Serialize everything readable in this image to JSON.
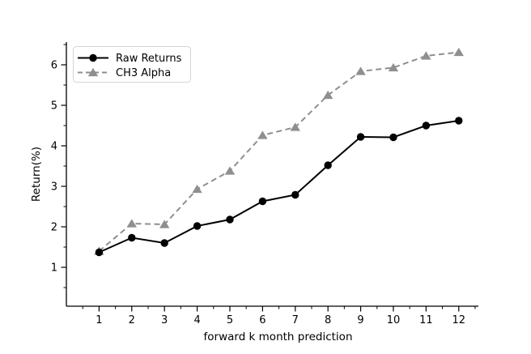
{
  "chart_data": {
    "type": "line",
    "title": "",
    "xlabel": "forward k month prediction",
    "ylabel": "Return(%)",
    "x": [
      1,
      2,
      3,
      4,
      5,
      6,
      7,
      8,
      9,
      10,
      11,
      12
    ],
    "series": [
      {
        "name": "CH3 Alpha",
        "color": "#8f8f8f",
        "linestyle": "dashed",
        "marker": "triangle",
        "values": [
          1.4,
          2.08,
          2.06,
          2.93,
          3.38,
          4.26,
          4.46,
          5.25,
          5.84,
          5.93,
          6.22,
          6.31
        ]
      },
      {
        "name": "Raw Returns",
        "color": "#000000",
        "linestyle": "solid",
        "marker": "circle",
        "values": [
          1.37,
          1.73,
          1.6,
          2.02,
          2.18,
          2.63,
          2.79,
          3.52,
          4.22,
          4.21,
          4.5,
          4.62
        ]
      }
    ],
    "legend_order": [
      "Raw Returns",
      "CH3 Alpha"
    ],
    "legend_position": "upper left",
    "xticks": [
      1,
      2,
      3,
      4,
      5,
      6,
      7,
      8,
      9,
      10,
      11,
      12
    ],
    "yticks": [
      1,
      2,
      3,
      4,
      5,
      6
    ],
    "minor_tick_step": 0.5,
    "xlim": [
      0.0,
      12.6
    ],
    "ylim": [
      0.04,
      6.56
    ],
    "grid": false,
    "background_color": "#ffffff",
    "axis_color": "#000000",
    "legend_border_color": "#d5d5d5"
  }
}
